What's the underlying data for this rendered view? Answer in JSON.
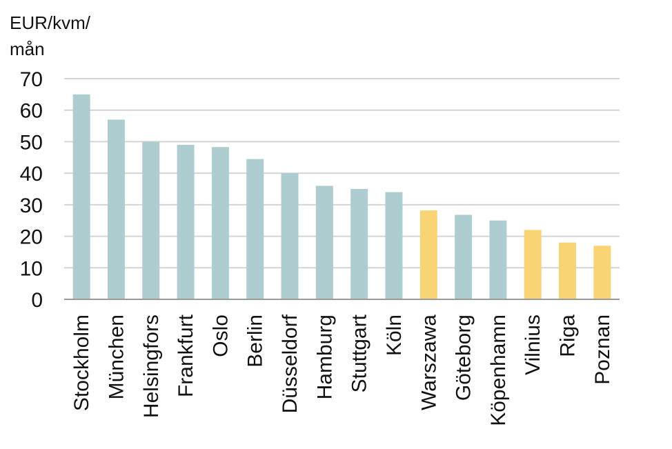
{
  "chart_data": {
    "type": "bar",
    "ylabel_lines": [
      "EUR/kvm/",
      "mån"
    ],
    "ylim": [
      0,
      70
    ],
    "yticks": [
      "0",
      "10",
      "20",
      "30",
      "40",
      "50",
      "60",
      "70"
    ],
    "grid": true,
    "categories": [
      "Stockholm",
      "München",
      "Helsingfors",
      "Frankfurt",
      "Oslo",
      "Berlin",
      "Düsseldorf",
      "Hamburg",
      "Stuttgart",
      "Köln",
      "Warszawa",
      "Göteborg",
      "Köpenhamn",
      "Vilnius",
      "Riga",
      "Poznan"
    ],
    "values": [
      65,
      57,
      50,
      49,
      48.3,
      44.5,
      40,
      36,
      35,
      34,
      28.2,
      26.8,
      25,
      22,
      18,
      17
    ],
    "bar_colors": [
      "#aecdd0",
      "#aecdd0",
      "#aecdd0",
      "#aecdd0",
      "#aecdd0",
      "#aecdd0",
      "#aecdd0",
      "#aecdd0",
      "#aecdd0",
      "#aecdd0",
      "#f9d475",
      "#aecdd0",
      "#aecdd0",
      "#f9d475",
      "#f9d475",
      "#f9d475"
    ],
    "colors": {
      "gridline": "#d4d4d4",
      "axis": "#9a9a9a",
      "text": "#111111"
    }
  }
}
